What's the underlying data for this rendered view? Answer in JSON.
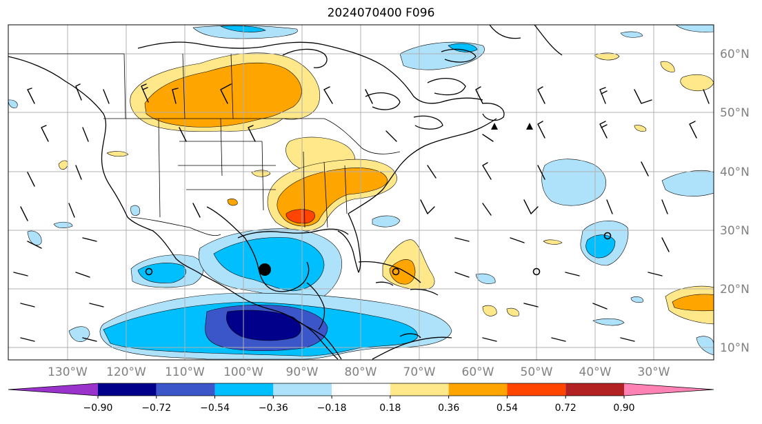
{
  "title": "2024070400 F096",
  "lat_labels": [
    "60°N",
    "50°N",
    "40°N",
    "30°N",
    "20°N",
    "10°N"
  ],
  "lon_labels": [
    "130°W",
    "120°W",
    "110°W",
    "100°W",
    "90°W",
    "80°W",
    "70°W",
    "60°W",
    "50°W",
    "40°W",
    "30°W"
  ],
  "colorbar": {
    "levels": [
      "−0.90",
      "−0.72",
      "−0.54",
      "−0.36",
      "−0.18",
      "0.18",
      "0.36",
      "0.54",
      "0.72",
      "0.90"
    ],
    "colors": [
      "#9933cc",
      "#00008b",
      "#3a56c8",
      "#00bfff",
      "#ade2fa",
      "#ffffff",
      "#ffe88a",
      "#ffa500",
      "#ff4500",
      "#b22222",
      "#ff82b4"
    ]
  },
  "markers": {
    "storm_symbol": "filled-circle",
    "low_symbols": "open-circle",
    "triangles": "filled-triangle"
  }
}
